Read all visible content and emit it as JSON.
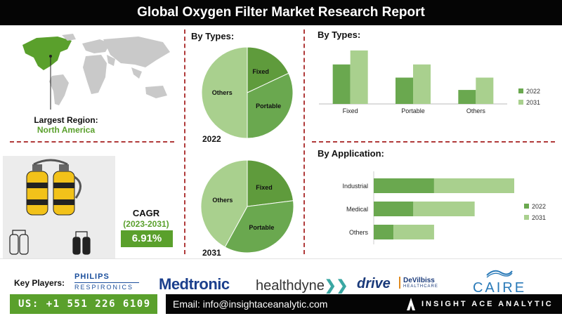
{
  "title": "Global Oxygen Filter Market Research Report",
  "region": {
    "label": "Largest Region:",
    "value": "North America"
  },
  "cagr": {
    "label": "CAGR",
    "period": "(2023-2031)",
    "value": "6.91%"
  },
  "pie_section_label": "By Types:",
  "key_players_label": "Key Players:",
  "logos": {
    "philips_top": "PHILIPS",
    "philips_bottom": "RESPIRONICS",
    "medtronic": "Medtronic",
    "healthdyne": "healthdyne",
    "drive": "drive",
    "devilbiss_top": "DeVilbiss",
    "devilbiss_bottom": "HEALTHCARE",
    "caire": "CAIRE"
  },
  "footer": {
    "phone": "US: +1 551 226 6109",
    "email": "Email: info@insightaceanalytic.com",
    "brand": "INSIGHT ACE ANALYTIC"
  },
  "colors": {
    "dark_green": "#5f9b3c",
    "mid_green": "#6aa84f",
    "light_green": "#a9d08e",
    "accent_green": "#5aa02c",
    "divider_red": "#b03a3a"
  },
  "chart_data": [
    {
      "type": "pie",
      "title": "2022",
      "labels": [
        "Fixed",
        "Portable",
        "Others"
      ],
      "values": [
        18,
        32,
        50
      ]
    },
    {
      "type": "pie",
      "title": "2031",
      "labels": [
        "Fixed",
        "Portable",
        "Others"
      ],
      "values": [
        23,
        35,
        42
      ]
    },
    {
      "type": "bar",
      "title": "By Types:",
      "categories": [
        "Fixed",
        "Portable",
        "Others"
      ],
      "series": [
        {
          "name": "2022",
          "values": [
            48,
            32,
            17
          ]
        },
        {
          "name": "2031",
          "values": [
            65,
            48,
            32
          ]
        }
      ],
      "ylim": [
        0,
        70
      ],
      "legend": "right"
    },
    {
      "type": "bar",
      "orientation": "horizontal-stacked",
      "title": "By Application:",
      "categories": [
        "Industrial",
        "Medical",
        "Others"
      ],
      "series": [
        {
          "name": "2022",
          "values": [
            61,
            40,
            20
          ]
        },
        {
          "name": "2031",
          "values": [
            81,
            62,
            41
          ]
        }
      ],
      "xlim": [
        0,
        142
      ],
      "legend": "right"
    }
  ]
}
